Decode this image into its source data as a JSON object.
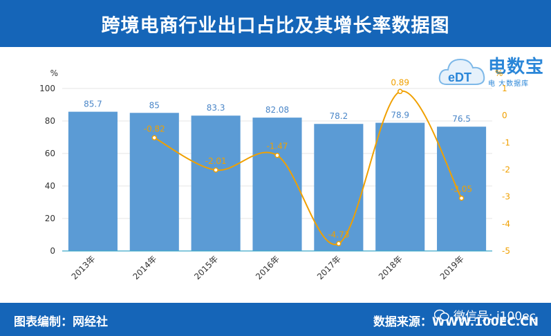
{
  "header": {
    "title": "跨境电商行业出口占比及其增长率数据图"
  },
  "footer": {
    "left_text": "图表编制：网经社",
    "right_text": "数据来源：WWW.100EC.CN"
  },
  "logo": {
    "brand": "电数宝",
    "sub": "电 大数据库",
    "mark": "eDT"
  },
  "watermark": {
    "text": "微信号: i100ec"
  },
  "colors": {
    "bar": "#5b9bd5",
    "line": "#f0a000",
    "header": "#1565b8"
  },
  "chart_data": {
    "type": "bar",
    "categories": [
      "2013年",
      "2014年",
      "2015年",
      "2016年",
      "2017年",
      "2018年",
      "2019年"
    ],
    "series": [
      {
        "name": "",
        "kind": "bar",
        "axis": "left",
        "values": [
          85.7,
          85,
          83.3,
          82.08,
          78.2,
          78.9,
          76.5
        ],
        "labels": [
          "85.7",
          "85",
          "83.3",
          "82.08",
          "78.2",
          "78.9",
          "76.5"
        ]
      },
      {
        "name": "",
        "kind": "line",
        "axis": "right",
        "values": [
          null,
          -0.82,
          -2.01,
          -1.47,
          -4.73,
          0.89,
          -3.05
        ],
        "labels": [
          "",
          "-0.82",
          "-2.01",
          "-1.47",
          "-4.73",
          "0.89",
          "-3.05"
        ]
      }
    ],
    "ylabel": "%",
    "ylabel_right": "%",
    "ylim": [
      0,
      100
    ],
    "ylim_right": [
      -5,
      1
    ],
    "yticks": [
      "0",
      "20",
      "40",
      "60",
      "80",
      "100"
    ],
    "yticks_right": [
      "-5",
      "-4",
      "-3",
      "-2",
      "-1",
      "0",
      "1"
    ],
    "grid": true,
    "legend": "none"
  }
}
